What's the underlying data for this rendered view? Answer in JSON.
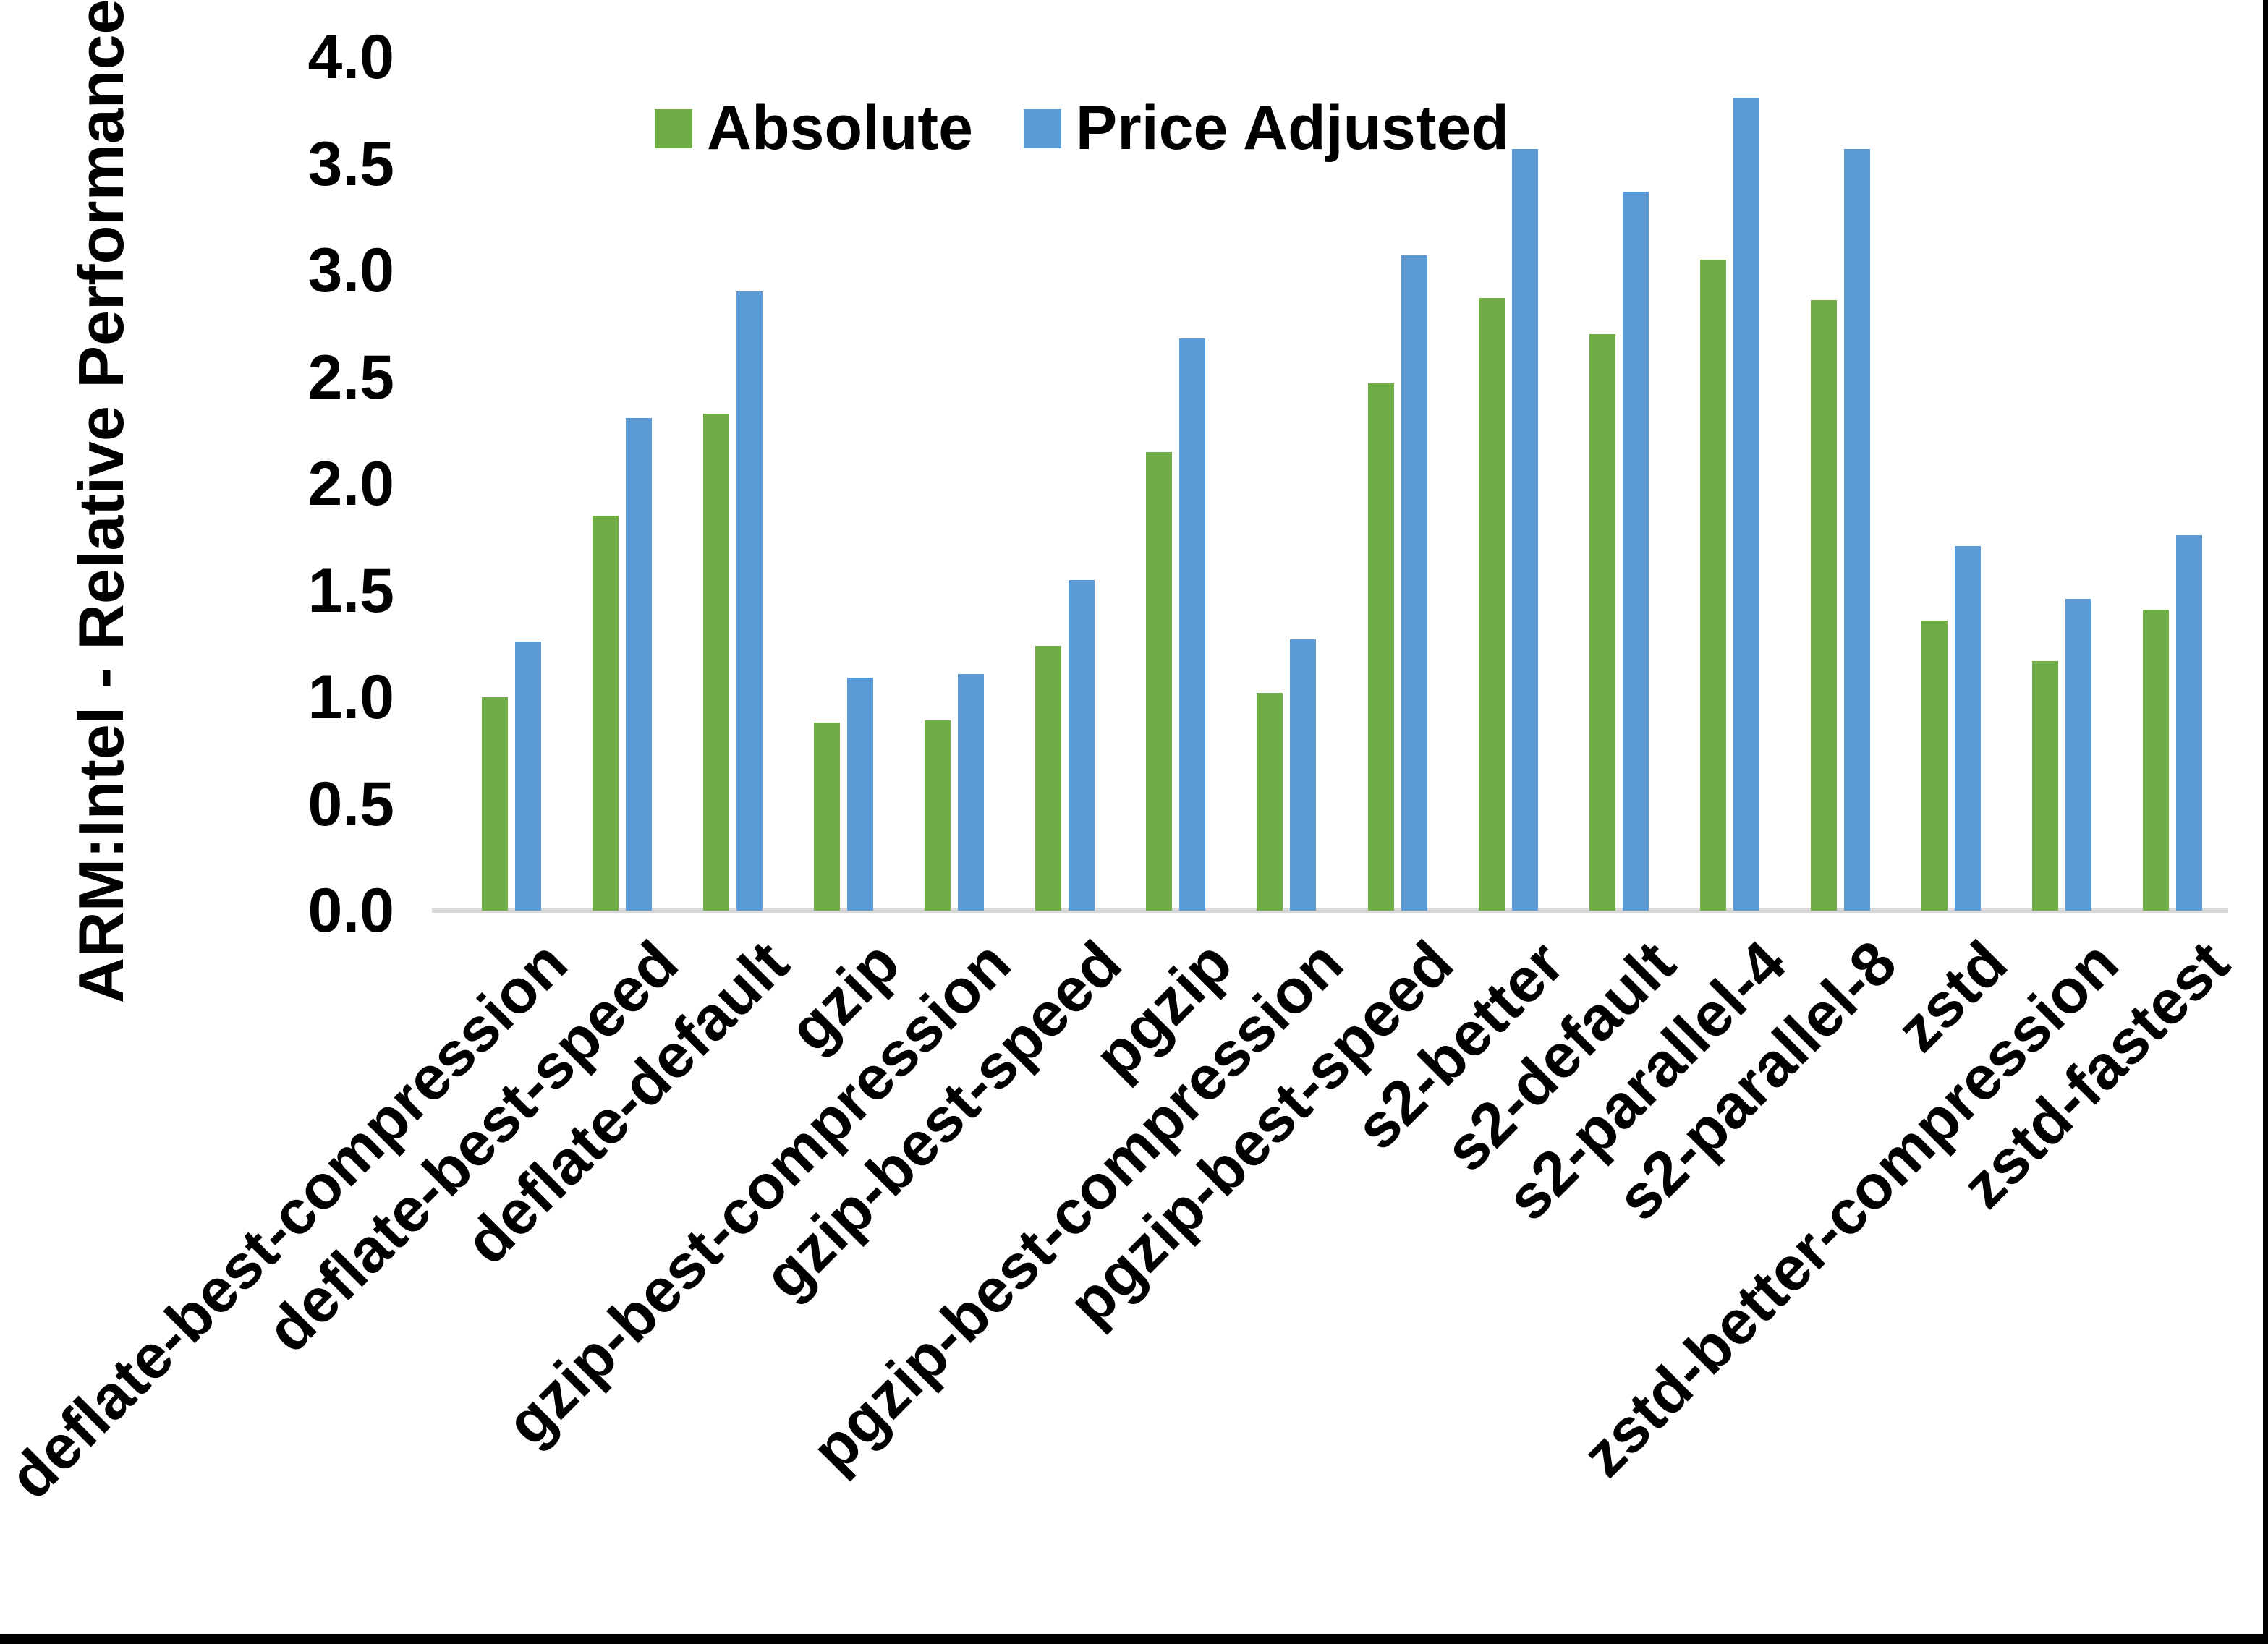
{
  "chart_data": {
    "type": "bar",
    "title": "",
    "ylabel": "ARM:Intel - Relative Performance",
    "xlabel": "",
    "ylim": [
      0.0,
      4.0
    ],
    "ytick_step": 0.5,
    "yticks": [
      "4.0",
      "3.5",
      "3.0",
      "2.5",
      "2.0",
      "1.5",
      "1.0",
      "0.5",
      "0.0"
    ],
    "grid": false,
    "legend_position": "top-center",
    "axis_line_color": "#d9d9d9",
    "categories": [
      "deflate-best-compression",
      "deflate-best-speed",
      "deflate-default",
      "gzip",
      "gzip-best-compression",
      "gzip-best-speed",
      "pgzip",
      "pgzip-best-compression",
      "pgzip-best-speed",
      "s2-better",
      "s2-default",
      "s2-parallel-4",
      "s2-parallel-8",
      "zstd",
      "zstd-better-compression",
      "zstd-fastest"
    ],
    "series": [
      {
        "name": "Absolute",
        "color": "#70AD47",
        "values": [
          1.0,
          1.85,
          2.33,
          0.88,
          0.89,
          1.24,
          2.15,
          1.02,
          2.47,
          2.87,
          2.7,
          3.05,
          2.86,
          1.36,
          1.17,
          1.41
        ]
      },
      {
        "name": "Price Adjusted",
        "color": "#5B9BD5",
        "values": [
          1.26,
          2.31,
          2.9,
          1.09,
          1.11,
          1.55,
          2.68,
          1.27,
          3.07,
          3.57,
          3.37,
          3.81,
          3.57,
          1.71,
          1.46,
          1.76
        ]
      }
    ]
  }
}
